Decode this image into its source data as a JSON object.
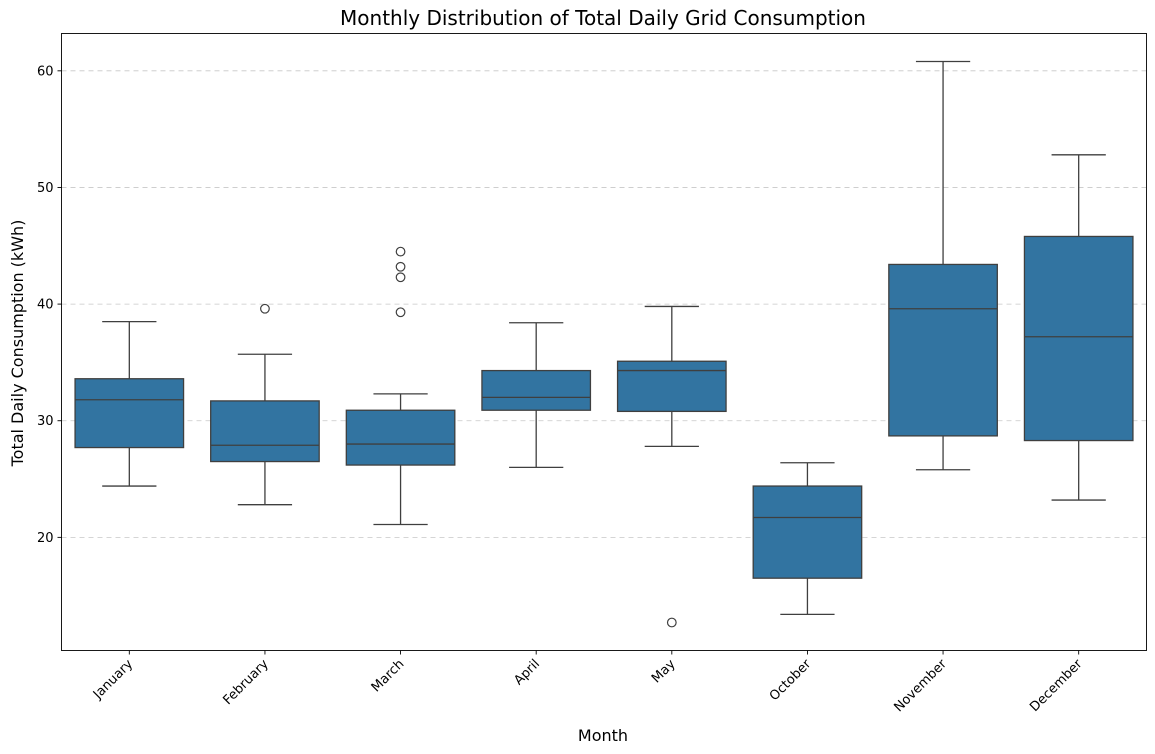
{
  "chart_data": {
    "type": "box",
    "title": "Monthly Distribution of Total Daily Grid Consumption",
    "xlabel": "Month",
    "ylabel": "Total Daily Consumption (kWh)",
    "ylim": [
      10.3,
      63.2
    ],
    "yticks": [
      20,
      30,
      40,
      50,
      60
    ],
    "grid": "y-dashed",
    "box_color": "#3274a1",
    "categories": [
      "January",
      "February",
      "March",
      "April",
      "May",
      "October",
      "November",
      "December"
    ],
    "boxes": [
      {
        "category": "January",
        "whisker_low": 24.4,
        "q1": 27.7,
        "median": 31.8,
        "q3": 33.6,
        "whisker_high": 38.5,
        "outliers": []
      },
      {
        "category": "February",
        "whisker_low": 22.8,
        "q1": 26.5,
        "median": 27.9,
        "q3": 31.7,
        "whisker_high": 35.7,
        "outliers": [
          39.6
        ]
      },
      {
        "category": "March",
        "whisker_low": 21.1,
        "q1": 26.2,
        "median": 28.0,
        "q3": 30.9,
        "whisker_high": 32.3,
        "outliers": [
          39.3,
          42.3,
          43.2,
          44.5
        ]
      },
      {
        "category": "April",
        "whisker_low": 26.0,
        "q1": 30.9,
        "median": 32.0,
        "q3": 34.3,
        "whisker_high": 38.4,
        "outliers": []
      },
      {
        "category": "May",
        "whisker_low": 27.8,
        "q1": 30.8,
        "median": 34.3,
        "q3": 35.1,
        "whisker_high": 39.8,
        "outliers": [
          12.7
        ]
      },
      {
        "category": "October",
        "whisker_low": 13.4,
        "q1": 16.5,
        "median": 21.7,
        "q3": 24.4,
        "whisker_high": 26.4,
        "outliers": []
      },
      {
        "category": "November",
        "whisker_low": 25.8,
        "q1": 28.7,
        "median": 39.6,
        "q3": 43.4,
        "whisker_high": 60.8,
        "outliers": []
      },
      {
        "category": "December",
        "whisker_low": 23.2,
        "q1": 28.3,
        "median": 37.2,
        "q3": 45.8,
        "whisker_high": 52.8,
        "outliers": []
      }
    ]
  }
}
